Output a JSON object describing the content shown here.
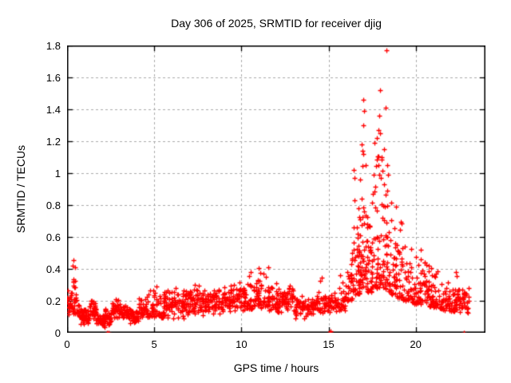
{
  "chart_data": {
    "type": "scatter",
    "title": "Day 306 of 2025, SRMTID for receiver djig",
    "xlabel": "GPS time / hours",
    "ylabel": "SRMTID / TECUs",
    "xlim": [
      0,
      24
    ],
    "ylim": [
      0,
      1.8
    ],
    "xtick_labels": [
      "0",
      "5",
      "10",
      "15",
      "20"
    ],
    "ytick_labels": [
      "0",
      "0.2",
      "0.4",
      "0.6",
      "0.8",
      "1",
      "1.2",
      "1.4",
      "1.6",
      "1.8"
    ],
    "grid": true,
    "grid_style": "dashed",
    "grid_color": "#aaaaaa",
    "axis_color": "#000000",
    "marker": "plus",
    "marker_color": "#ff0000",
    "legend": "none",
    "series": [
      {
        "name": "SRMTID",
        "note": "dense scatter summarized as envelope bins [x_start_h, x_end_h, y_min_TECU, y_max_TECU, n_points]",
        "envelope_bins": [
          [
            0.0,
            0.3,
            0.1,
            0.28,
            22
          ],
          [
            0.3,
            0.55,
            0.12,
            0.51,
            28
          ],
          [
            0.55,
            0.9,
            0.05,
            0.2,
            24
          ],
          [
            0.9,
            1.3,
            0.04,
            0.16,
            34
          ],
          [
            1.3,
            1.7,
            0.07,
            0.22,
            34
          ],
          [
            1.7,
            2.2,
            0.03,
            0.13,
            40
          ],
          [
            2.2,
            2.6,
            0.04,
            0.15,
            30
          ],
          [
            2.6,
            3.1,
            0.07,
            0.22,
            40
          ],
          [
            3.1,
            3.6,
            0.06,
            0.18,
            36
          ],
          [
            3.6,
            4.1,
            0.05,
            0.16,
            36
          ],
          [
            4.1,
            4.6,
            0.08,
            0.22,
            36
          ],
          [
            4.6,
            5.0,
            0.1,
            0.34,
            30
          ],
          [
            5.0,
            5.6,
            0.09,
            0.36,
            38
          ],
          [
            5.6,
            6.3,
            0.08,
            0.3,
            46
          ],
          [
            6.3,
            7.0,
            0.07,
            0.28,
            46
          ],
          [
            7.0,
            7.6,
            0.1,
            0.31,
            40
          ],
          [
            7.6,
            8.3,
            0.08,
            0.28,
            46
          ],
          [
            8.3,
            9.0,
            0.11,
            0.28,
            46
          ],
          [
            9.0,
            9.7,
            0.12,
            0.31,
            46
          ],
          [
            9.7,
            10.3,
            0.13,
            0.34,
            40
          ],
          [
            10.3,
            10.7,
            0.15,
            0.43,
            28
          ],
          [
            10.7,
            11.0,
            0.17,
            0.47,
            22
          ],
          [
            11.0,
            11.6,
            0.15,
            0.42,
            40
          ],
          [
            11.6,
            12.3,
            0.13,
            0.36,
            46
          ],
          [
            12.3,
            13.1,
            0.11,
            0.3,
            50
          ],
          [
            13.1,
            13.9,
            0.08,
            0.24,
            50
          ],
          [
            13.9,
            14.4,
            0.1,
            0.25,
            34
          ],
          [
            14.4,
            14.8,
            0.12,
            0.38,
            24
          ],
          [
            14.8,
            15.6,
            0.11,
            0.26,
            46
          ],
          [
            15.6,
            16.1,
            0.14,
            0.4,
            30
          ],
          [
            16.1,
            16.4,
            0.2,
            0.65,
            24
          ],
          [
            16.4,
            16.8,
            0.24,
            1.0,
            44
          ],
          [
            16.8,
            17.2,
            0.28,
            1.2,
            46
          ],
          [
            17.2,
            17.6,
            0.25,
            0.95,
            40
          ],
          [
            17.6,
            18.1,
            0.28,
            1.3,
            50
          ],
          [
            18.1,
            18.5,
            0.26,
            1.25,
            44
          ],
          [
            18.5,
            18.9,
            0.24,
            0.85,
            36
          ],
          [
            18.9,
            19.3,
            0.22,
            0.78,
            30
          ],
          [
            19.3,
            19.8,
            0.2,
            0.6,
            30
          ],
          [
            19.8,
            20.3,
            0.18,
            0.5,
            36
          ],
          [
            20.3,
            20.8,
            0.17,
            0.58,
            36
          ],
          [
            20.8,
            21.4,
            0.16,
            0.45,
            40
          ],
          [
            21.4,
            22.0,
            0.14,
            0.38,
            40
          ],
          [
            22.0,
            22.4,
            0.13,
            0.45,
            30
          ],
          [
            22.4,
            23.1,
            0.1,
            0.3,
            44
          ]
        ],
        "outlier_points": [
          [
            2.3,
            0.0
          ],
          [
            2.38,
            0.0
          ],
          [
            15.08,
            0.0
          ],
          [
            15.12,
            0.0
          ],
          [
            15.1,
            0.01
          ],
          [
            22.75,
            0.0
          ],
          [
            18.3,
            1.77
          ],
          [
            17.95,
            1.52
          ],
          [
            17.0,
            1.46
          ],
          [
            18.28,
            1.41
          ],
          [
            17.02,
            1.39
          ],
          [
            17.9,
            1.36
          ],
          [
            16.98,
            1.3
          ],
          [
            17.88,
            1.27
          ],
          [
            17.96,
            1.25
          ],
          [
            17.75,
            1.22
          ],
          [
            16.9,
            1.18
          ],
          [
            18.2,
            1.15
          ],
          [
            17.0,
            1.12
          ],
          [
            18.05,
            1.1
          ],
          [
            18.35,
            1.05
          ],
          [
            17.15,
            1.05
          ],
          [
            16.45,
            1.02
          ],
          [
            16.5,
            0.97
          ]
        ]
      }
    ]
  }
}
